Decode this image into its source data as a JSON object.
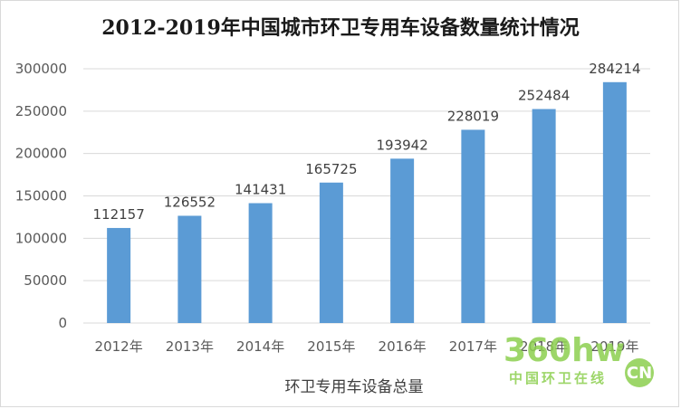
{
  "chart_data": {
    "type": "bar",
    "title": "2012-2019年中国城市环卫专用车设备数量统计情况",
    "xlabel": "环卫专用车设备总量",
    "ylabel": "",
    "categories": [
      "2012年",
      "2013年",
      "2014年",
      "2015年",
      "2016年",
      "2017年",
      "2018年",
      "2019年"
    ],
    "values": [
      112157,
      126552,
      141431,
      165725,
      193942,
      228019,
      252484,
      284214
    ],
    "ylim": [
      0,
      300000
    ],
    "yticks": [
      0,
      50000,
      100000,
      150000,
      200000,
      250000,
      300000
    ],
    "grid": true,
    "legend": "none",
    "bar_color": "#5b9bd5",
    "grid_color": "#d9d9d9"
  },
  "watermark": {
    "main": "360hw",
    "sub": "中国环卫在线",
    "badge": "CN",
    "color": "#8ccf4f"
  }
}
